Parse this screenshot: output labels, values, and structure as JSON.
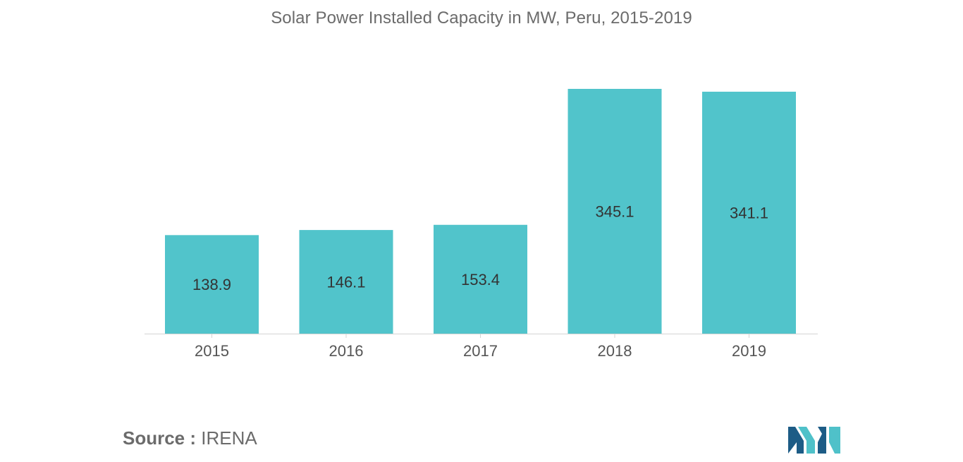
{
  "colors": {
    "bar": "#51c4cb",
    "title_text": "#6b6b6b",
    "label_text": "#333333",
    "tick_text": "#555555",
    "axis": "#d4d4d4",
    "logo_dark": "#1d5c86",
    "logo_light": "#4fc1c9"
  },
  "chart_data": {
    "type": "bar",
    "title": "Solar Power Installed Capacity in MW, Peru, 2015-2019",
    "xlabel": "",
    "ylabel": "",
    "categories": [
      "2015",
      "2016",
      "2017",
      "2018",
      "2019"
    ],
    "values": [
      138.9,
      146.1,
      153.4,
      345.1,
      341.1
    ],
    "value_labels": [
      "138.9",
      "146.1",
      "153.4",
      "345.1",
      "341.1"
    ],
    "ylim": [
      0,
      345.1
    ],
    "grid": false,
    "legend": "none"
  },
  "footer": {
    "source_label": "Source :",
    "source_value": "IRENA"
  },
  "logo": {
    "icon": "mordor-intelligence-logo-icon"
  }
}
